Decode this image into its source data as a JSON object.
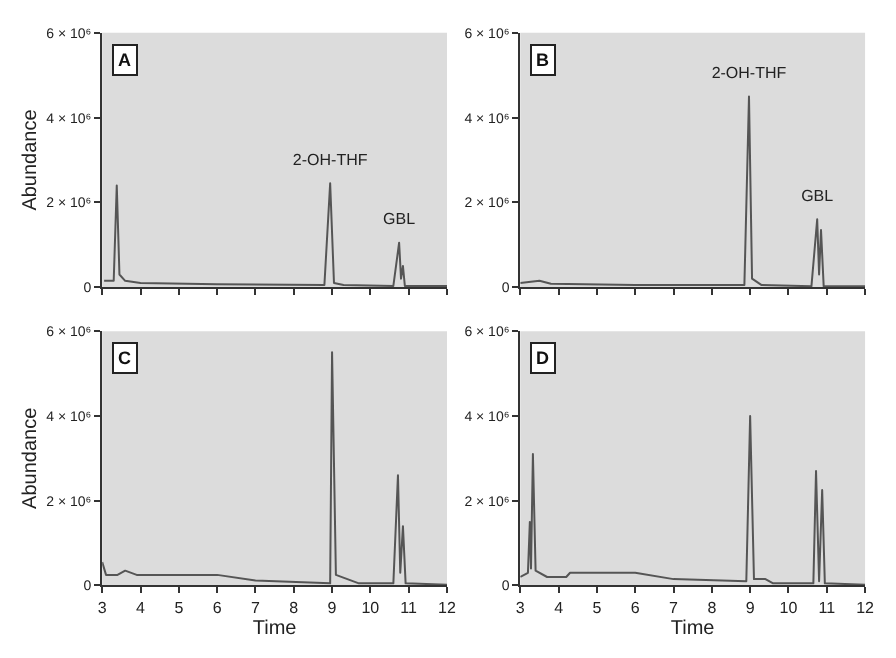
{
  "chart_data": [
    {
      "type": "line",
      "title": "A",
      "ylabel": "Abundance",
      "tick_labels": "y",
      "grid": false,
      "xlim": [
        3,
        12
      ],
      "xticks": [
        3,
        4,
        5,
        6,
        7,
        8,
        9,
        10,
        11,
        12
      ],
      "ylim": [
        0,
        6000000
      ],
      "yticks": [
        {
          "value": 0,
          "label": "0"
        },
        {
          "value": 2000000,
          "label": "2 × 10⁶"
        },
        {
          "value": 4000000,
          "label": "4 × 10⁶"
        },
        {
          "value": 6000000,
          "label": "6 × 10⁶"
        }
      ],
      "annotations": [
        {
          "text": "2-OH-THF",
          "x": 8.95,
          "y": 2450000
        },
        {
          "text": "GBL",
          "x": 10.75,
          "y": 1050000
        }
      ],
      "series": [
        {
          "color": "#555555",
          "x": [
            3.05,
            3.3,
            3.38,
            3.45,
            3.6,
            4,
            6,
            8.8,
            8.95,
            9.05,
            9.3,
            10.6,
            10.75,
            10.8,
            10.85,
            10.9,
            12
          ],
          "values": [
            150000,
            150000,
            2400000,
            300000,
            150000,
            100000,
            70000,
            50000,
            2450000,
            100000,
            50000,
            30000,
            1050000,
            200000,
            500000,
            30000,
            30000
          ]
        }
      ]
    },
    {
      "type": "line",
      "title": "B",
      "tick_labels": "y",
      "grid": false,
      "xlim": [
        3,
        12
      ],
      "xticks": [
        3,
        4,
        5,
        6,
        7,
        8,
        9,
        10,
        11,
        12
      ],
      "ylim": [
        0,
        6000000
      ],
      "yticks": [
        {
          "value": 0,
          "label": "0"
        },
        {
          "value": 2000000,
          "label": "2 × 10⁶"
        },
        {
          "value": 4000000,
          "label": "4 × 10⁶"
        },
        {
          "value": 6000000,
          "label": "6 × 10⁶"
        }
      ],
      "annotations": [
        {
          "text": "2-OH-THF",
          "x": 8.97,
          "y": 4500000
        },
        {
          "text": "GBL",
          "x": 10.75,
          "y": 1600000
        }
      ],
      "series": [
        {
          "color": "#555555",
          "x": [
            3,
            3.5,
            3.8,
            6,
            8.85,
            8.97,
            9.05,
            9.3,
            10.6,
            10.75,
            10.8,
            10.85,
            10.92,
            12
          ],
          "values": [
            100000,
            150000,
            80000,
            50000,
            50000,
            4500000,
            200000,
            50000,
            20000,
            1600000,
            300000,
            1350000,
            20000,
            20000
          ]
        }
      ]
    },
    {
      "type": "line",
      "title": "C",
      "xlabel": "Time",
      "ylabel": "Abundance",
      "grid": false,
      "xlim": [
        3,
        12
      ],
      "xticks": [
        3,
        4,
        5,
        6,
        7,
        8,
        9,
        10,
        11,
        12
      ],
      "ylim": [
        0,
        6000000
      ],
      "yticks": [
        {
          "value": 0,
          "label": "0"
        },
        {
          "value": 2000000,
          "label": "2 × 10⁶"
        },
        {
          "value": 4000000,
          "label": "4 × 10⁶"
        },
        {
          "value": 6000000,
          "label": "6 × 10⁶"
        }
      ],
      "series": [
        {
          "color": "#555555",
          "x": [
            3,
            3.1,
            3.4,
            3.6,
            3.9,
            6,
            7,
            8.95,
            9.0,
            9.1,
            9.4,
            9.7,
            10.6,
            10.72,
            10.78,
            10.85,
            10.92,
            12
          ],
          "values": [
            550000,
            250000,
            250000,
            350000,
            250000,
            250000,
            120000,
            50000,
            5500000,
            250000,
            150000,
            50000,
            50000,
            2600000,
            300000,
            1400000,
            50000,
            20000
          ]
        }
      ]
    },
    {
      "type": "line",
      "title": "D",
      "xlabel": "Time",
      "grid": false,
      "xlim": [
        3,
        12
      ],
      "xticks": [
        3,
        4,
        5,
        6,
        7,
        8,
        9,
        10,
        11,
        12
      ],
      "ylim": [
        0,
        6000000
      ],
      "yticks": [
        {
          "value": 0,
          "label": "0"
        },
        {
          "value": 2000000,
          "label": "2 × 10⁶"
        },
        {
          "value": 4000000,
          "label": "4 × 10⁶"
        },
        {
          "value": 6000000,
          "label": "6 × 10⁶"
        }
      ],
      "series": [
        {
          "color": "#555555",
          "x": [
            3,
            3.2,
            3.25,
            3.28,
            3.33,
            3.4,
            3.7,
            4.2,
            4.3,
            6,
            7,
            8.9,
            9.0,
            9.1,
            9.4,
            9.6,
            10.65,
            10.72,
            10.8,
            10.88,
            10.95,
            12
          ],
          "values": [
            200000,
            300000,
            1500000,
            400000,
            3100000,
            350000,
            200000,
            200000,
            300000,
            300000,
            150000,
            100000,
            4000000,
            150000,
            150000,
            50000,
            50000,
            2700000,
            100000,
            2250000,
            50000,
            20000
          ]
        }
      ]
    }
  ]
}
